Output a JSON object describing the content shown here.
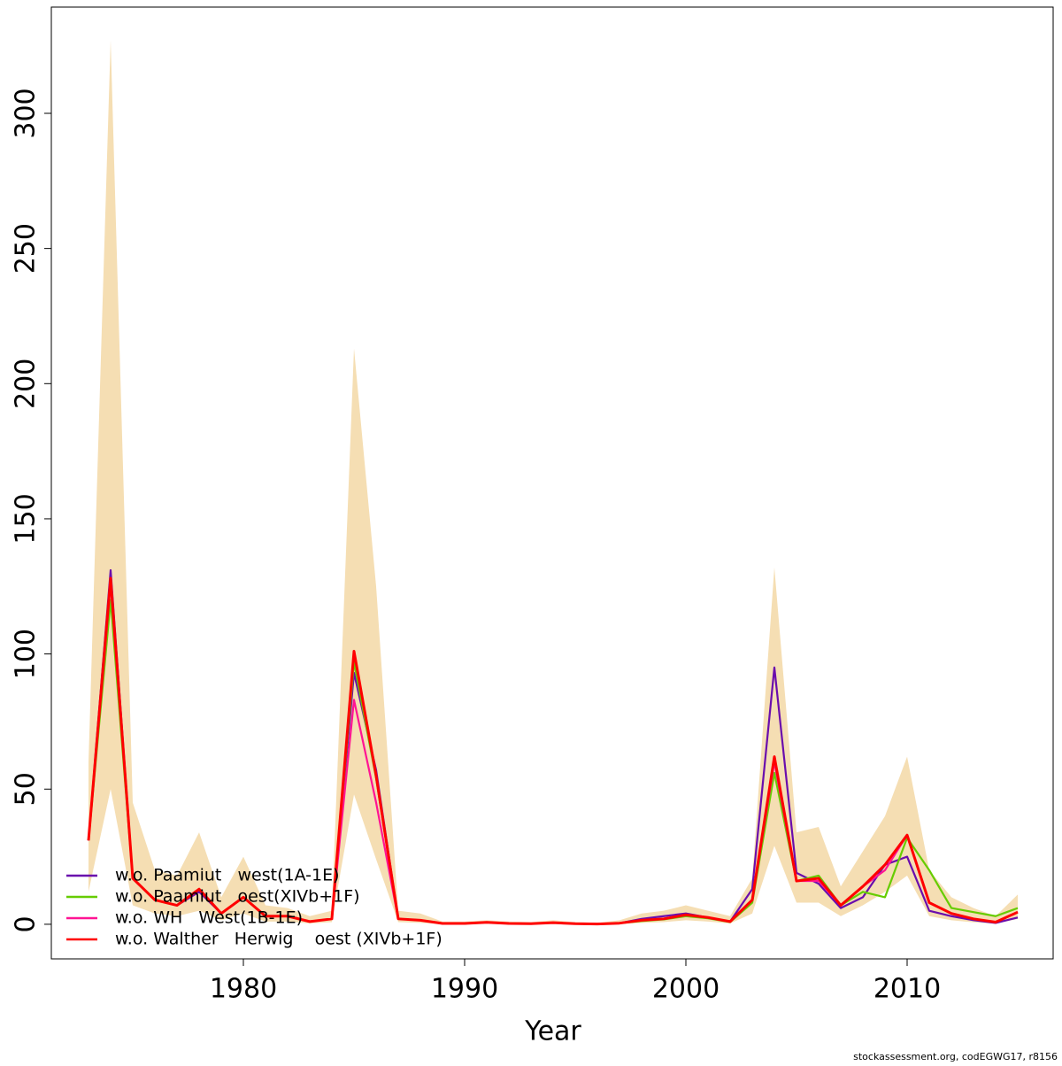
{
  "chart_data": {
    "type": "line",
    "xlabel": "Year",
    "footer": "stockassessment.org, codEGWG17, r8156",
    "x": [
      1973,
      1974,
      1975,
      1976,
      1977,
      1978,
      1979,
      1980,
      1981,
      1982,
      1983,
      1984,
      1985,
      1986,
      1987,
      1988,
      1989,
      1990,
      1991,
      1992,
      1993,
      1994,
      1995,
      1996,
      1997,
      1998,
      1999,
      2000,
      2001,
      2002,
      2003,
      2004,
      2005,
      2006,
      2007,
      2008,
      2009,
      2010,
      2011,
      2012,
      2013,
      2014,
      2015
    ],
    "band": {
      "color": "#f5deb3",
      "upper": [
        60,
        327,
        45,
        20,
        18,
        34,
        10,
        25,
        7,
        6,
        3,
        5,
        213,
        125,
        5,
        4,
        1,
        1,
        1.5,
        1,
        0.8,
        1.5,
        0.8,
        0.5,
        1.5,
        4,
        5,
        7,
        5,
        3,
        17,
        132,
        34,
        36,
        14,
        27,
        40,
        62,
        20,
        10,
        6,
        3,
        11
      ],
      "lower": [
        12,
        50,
        7,
        4,
        3,
        5,
        1.5,
        4,
        1,
        1,
        0.3,
        0.8,
        48,
        24,
        0.8,
        0.5,
        0.1,
        0.1,
        0.3,
        0.1,
        0.1,
        0.2,
        0.1,
        0,
        0.1,
        0.5,
        0.8,
        1.5,
        1,
        0.3,
        4,
        29,
        8,
        8,
        3,
        7,
        12,
        18,
        3,
        1.5,
        0.7,
        0.2,
        2
      ]
    },
    "series": [
      {
        "name": "w.o. Paamiut   west(1A-1E)",
        "color": "#6a0dad",
        "values": [
          31,
          131,
          17,
          9,
          7,
          12,
          4,
          10,
          3,
          3,
          1,
          2,
          93,
          57,
          2,
          1.5,
          0.3,
          0.3,
          0.7,
          0.3,
          0.2,
          0.6,
          0.2,
          0.1,
          0.4,
          2,
          3,
          4,
          2.5,
          1,
          13,
          95,
          19,
          15,
          6,
          10,
          22,
          25,
          5,
          3,
          1.5,
          0.5,
          2.5
        ]
      },
      {
        "name": "w.o. Paamiut   oest(XIVb+1F)",
        "color": "#66cc00",
        "values": [
          31,
          120,
          17,
          9,
          7,
          13,
          4,
          10,
          3,
          3,
          1,
          2,
          97,
          54,
          2,
          1.5,
          0.3,
          0.3,
          0.7,
          0.3,
          0.2,
          0.6,
          0.2,
          0.1,
          0.4,
          1.2,
          1.8,
          3,
          2.2,
          0.8,
          8,
          56,
          16,
          18,
          7,
          12,
          10,
          32,
          20,
          6,
          4.5,
          3,
          6
        ]
      },
      {
        "name": "w.o. WH   West(1B-1E)",
        "color": "#ff1493",
        "values": [
          31,
          126,
          17,
          9,
          7,
          13,
          4,
          10,
          3,
          3,
          1,
          2,
          83,
          45,
          2,
          1.5,
          0.3,
          0.3,
          0.7,
          0.3,
          0.2,
          0.6,
          0.2,
          0.1,
          0.4,
          1.5,
          2,
          3.5,
          2.5,
          1,
          9,
          60,
          16,
          16,
          7,
          14,
          20,
          33,
          8,
          4,
          2,
          0.8,
          4.5
        ]
      },
      {
        "name": "w.o. Walther   Herwig    oest (XIVb+1F)",
        "color": "#ff0000",
        "values": [
          31,
          128,
          17,
          9,
          7,
          13,
          4,
          10,
          3,
          3,
          1,
          2,
          101,
          55,
          2,
          1.5,
          0.3,
          0.3,
          0.7,
          0.3,
          0.2,
          0.6,
          0.2,
          0.1,
          0.4,
          1.5,
          2,
          3.5,
          2.5,
          1,
          9,
          62,
          16,
          17,
          7,
          14,
          22,
          33,
          8,
          4,
          2,
          0.8,
          4.5
        ]
      }
    ],
    "xlim": [
      1971.32,
      2016.6
    ],
    "xticks": [
      1980,
      1990,
      2000,
      2010
    ],
    "ylim": [
      -12.8,
      339.3
    ],
    "yticks": [
      0,
      50,
      100,
      150,
      200,
      250,
      300
    ],
    "legend": "bottomleft"
  }
}
